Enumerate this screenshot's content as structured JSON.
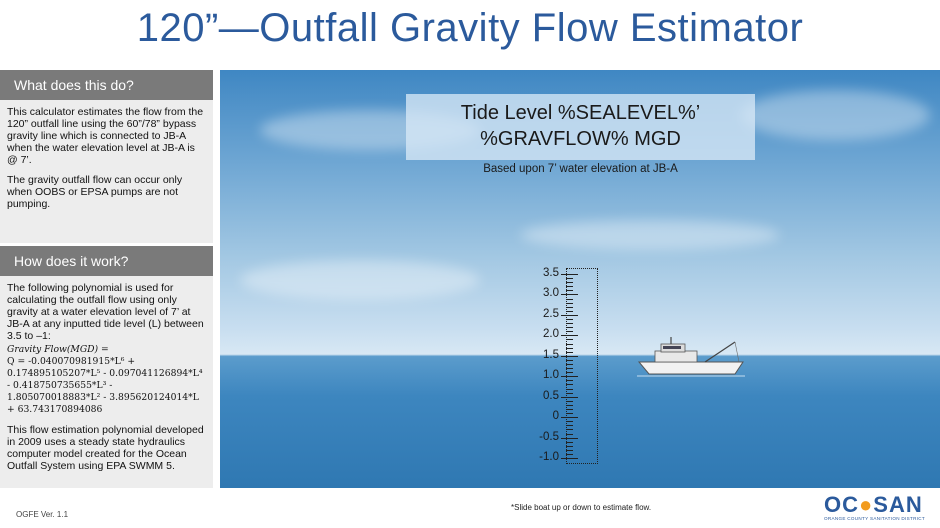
{
  "title": "120”—Outfall Gravity Flow Estimator",
  "what": {
    "heading": "What does this do?",
    "para1": "This calculator estimates the flow from the 120” outfall line using the 60”/78” bypass gravity line which is connected to JB-A when the water elevation level at JB-A is @ 7’.",
    "para2": "The gravity outfall flow can occur only when OOBS or EPSA pumps are not pumping."
  },
  "how": {
    "heading": "How does it work?",
    "para1": "The following polynomial is used for calculating the outfall flow using only gravity at a water elevation level of 7’ at JB-A at any inputted tide level (L) between 3.5 to –1:",
    "formula_label": "Gravity Flow(MGD) =",
    "formula": "Q = -0.040070981915*L⁶ + 0.174895105207*L⁵ - 0.097041126894*L⁴ - 0.418750735655*L³ - 1.805070018883*L² - 3.895620124014*L + 63.743170894086",
    "para2": "This flow estimation polynomial developed in 2009 uses a steady state hydraulics computer model created for the Ocean Outfall System using EPA SWMM 5."
  },
  "display": {
    "line1": "Tide Level %SEALEVEL%’",
    "line2": "%GRAVFLOW% MGD",
    "based": "Based upon 7’ water elevation at JB-A"
  },
  "gauge": {
    "labels": [
      "3.5",
      "3.0",
      "2.5",
      "2.0",
      "1.5",
      "1.0",
      "0.5",
      "0",
      "-0.5",
      "-1.0"
    ],
    "values": [
      3.5,
      3.0,
      2.5,
      2.0,
      1.5,
      1.0,
      0.5,
      0,
      -0.5,
      -1.0
    ],
    "min": -1.0,
    "max": 3.5
  },
  "footnote": "*Slide boat up or down to estimate flow.",
  "version": "OGFE Ver. 1.1",
  "logo": {
    "text_oc": "OC",
    "text_san": "SAN",
    "subtitle": "ORANGE COUNTY SANITATION DISTRICT",
    "color_blue": "#2b5a9c",
    "color_orange": "#f29c1f"
  }
}
